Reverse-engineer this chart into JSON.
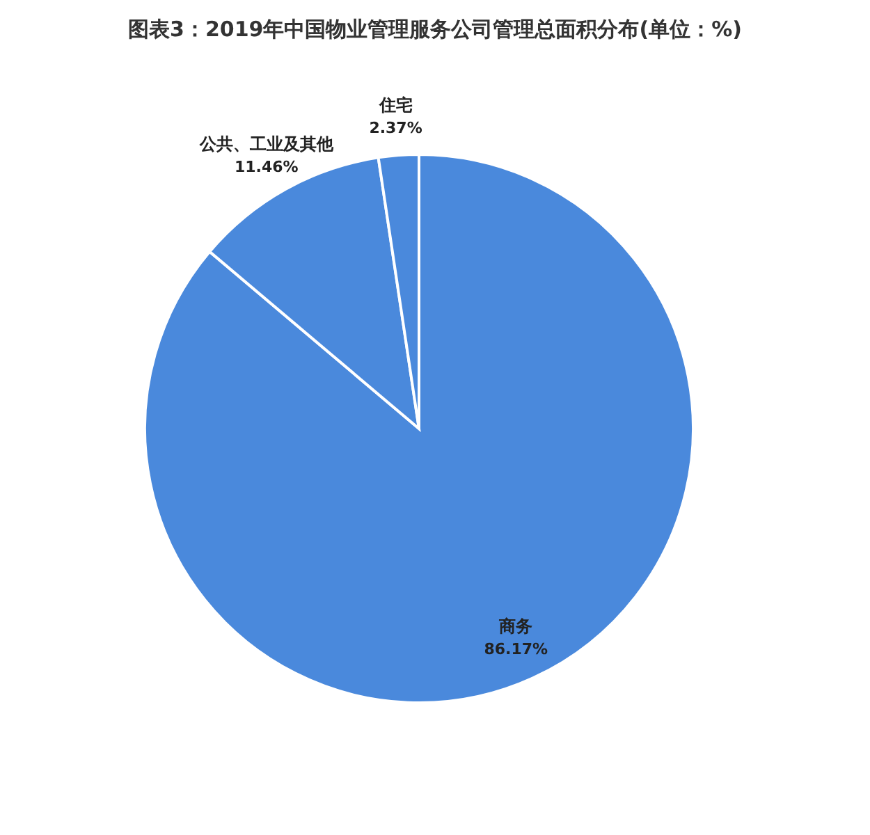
{
  "chart_data": {
    "type": "pie",
    "title": "图表3：2019年中国物业管理服务公司管理总面积分布(单位：%)",
    "categories": [
      "商务",
      "公共、工业及其他",
      "住宅"
    ],
    "values": [
      86.17,
      11.46,
      2.37
    ],
    "value_labels": [
      "86.17%",
      "11.46%",
      "2.37%"
    ],
    "colors": [
      "#4a89dc",
      "#4a89dc",
      "#4a89dc"
    ]
  }
}
